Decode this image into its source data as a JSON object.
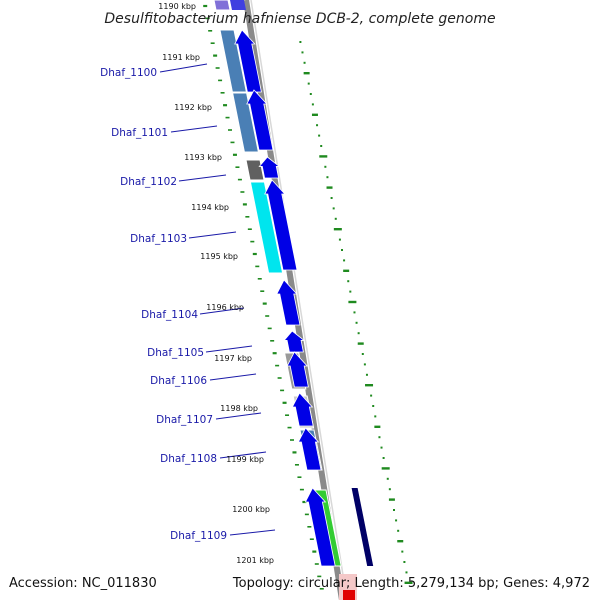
{
  "title": "Desulfitobacterium hafniense DCB-2, complete genome",
  "footer": {
    "accession": "Accession: NC_011830",
    "summary": "Topology: circular; Length: 5,279,134 bp; Genes: 4,972"
  },
  "colors": {
    "cds_forward": "#0000e6",
    "backbone": "#8a8a8a",
    "tick": "#1f8a1f",
    "label_line": "#1a1aa8",
    "label_text": "#1a1aa8"
  },
  "kbp_labels": [
    "1190 kbp",
    "1191 kbp",
    "1192 kbp",
    "1193 kbp",
    "1194 kbp",
    "1195 kbp",
    "1196 kbp",
    "1197 kbp",
    "1198 kbp",
    "1199 kbp",
    "1200 kbp",
    "1201 kbp"
  ],
  "genes": [
    {
      "label": "Dhaf_1100",
      "category_color": "#4a7fb5"
    },
    {
      "label": "Dhaf_1101",
      "category_color": "#4a7fb5"
    },
    {
      "label": "Dhaf_1102",
      "category_color": "#606060"
    },
    {
      "label": "Dhaf_1103",
      "category_color": "#00e5ee"
    },
    {
      "label": "Dhaf_1104",
      "category_color": ""
    },
    {
      "label": "Dhaf_1105",
      "category_color": ""
    },
    {
      "label": "Dhaf_1106",
      "category_color": "#9a9a9a"
    },
    {
      "label": "Dhaf_1107",
      "category_color": "#c8c8c8"
    },
    {
      "label": "Dhaf_1108",
      "category_color": "#4a7fb5"
    },
    {
      "label": "Dhaf_1109",
      "category_color": "#33cc33"
    }
  ]
}
